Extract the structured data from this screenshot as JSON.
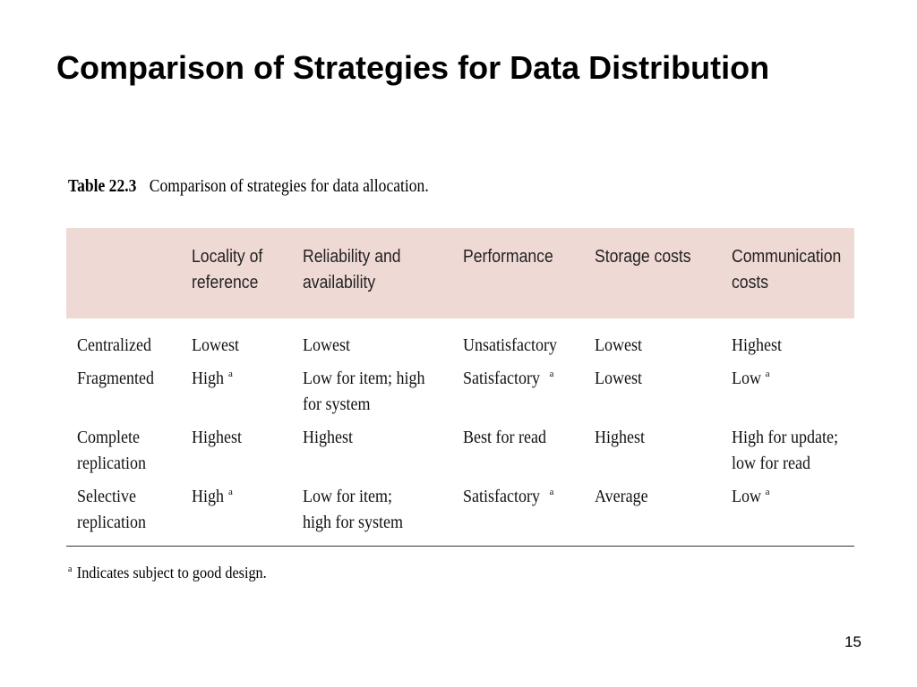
{
  "slide": {
    "title": "Comparison of Strategies for Data Distribution",
    "page_number": "15"
  },
  "table": {
    "caption_label": "Table 22.3",
    "caption_text": "Comparison of strategies for data allocation.",
    "headers": [
      "",
      "Locality of\nreference",
      "Reliability and\navailability",
      "Performance",
      "Storage costs",
      "Communication\ncosts"
    ],
    "footnote_marker": "a",
    "rows": [
      {
        "strategy": "Centralized",
        "cells": [
          {
            "text": "Lowest",
            "mark": ""
          },
          {
            "text": "Lowest",
            "mark": ""
          },
          {
            "text": "Unsatisfactory",
            "mark": ""
          },
          {
            "text": "Lowest",
            "mark": ""
          },
          {
            "text": "Highest",
            "mark": ""
          }
        ]
      },
      {
        "strategy": "Fragmented",
        "cells": [
          {
            "text": "High",
            "mark": "a"
          },
          {
            "text": "Low for item; high\nfor system",
            "mark": ""
          },
          {
            "text": "Satisfactory",
            "mark": "a"
          },
          {
            "text": "Lowest",
            "mark": ""
          },
          {
            "text": "Low",
            "mark": "a"
          }
        ]
      },
      {
        "strategy": "Complete\nreplication",
        "cells": [
          {
            "text": "Highest",
            "mark": ""
          },
          {
            "text": "Highest",
            "mark": ""
          },
          {
            "text": "Best for read",
            "mark": ""
          },
          {
            "text": "Highest",
            "mark": ""
          },
          {
            "text": "High for update;\nlow for read",
            "mark": ""
          }
        ]
      },
      {
        "strategy": "Selective\nreplication",
        "cells": [
          {
            "text": "High",
            "mark": "a"
          },
          {
            "text": "Low for item;\nhigh for system",
            "mark": ""
          },
          {
            "text": "Satisfactory",
            "mark": "a"
          },
          {
            "text": "Average",
            "mark": ""
          },
          {
            "text": "Low",
            "mark": "a"
          }
        ]
      }
    ],
    "footnote": {
      "marker": "a",
      "text": "Indicates subject to good design."
    },
    "header_background": "#efd9d5"
  }
}
